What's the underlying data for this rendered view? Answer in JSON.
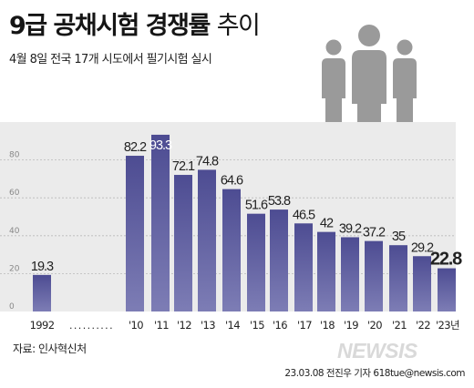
{
  "title_bold": "9급 공채시험 경쟁률",
  "title_light": "추이",
  "subtitle": "4월 8일 전국 17개 시도에서 필기시험 실시",
  "source": "자료: 인사혁신처",
  "watermark": "NEWSIS",
  "credit": "23.03.08 전진우 기자 618tue@newsis.com",
  "icon": "people-group-icon",
  "colors": {
    "bar_top": "#4d4c92",
    "bar_bottom": "#7d7db5",
    "icon": "#9a9a9a",
    "background_panel": "#ebebeb",
    "gridline": "#b9b9b9"
  },
  "chart_data": {
    "type": "bar",
    "title": "9급 공채시험 경쟁률 추이",
    "categories": [
      "1992",
      "'10",
      "'11",
      "'12",
      "'13",
      "'14",
      "'15",
      "'16",
      "'17",
      "'18",
      "'19",
      "'20",
      "'21",
      "'22",
      "'23년"
    ],
    "values": [
      19.3,
      82.2,
      93.3,
      72.1,
      74.8,
      64.6,
      51.6,
      53.8,
      46.5,
      42,
      39.2,
      37.2,
      35,
      29.2,
      22.8
    ],
    "value_labels": [
      "19.3",
      "82.2",
      "93.3",
      "72.1",
      "74.8",
      "64.6",
      "51.6",
      "53.8",
      "46.5",
      "42",
      "39.2",
      "37.2",
      "35",
      "29.2",
      "22.8"
    ],
    "highlight_index": 2,
    "emphasis_index": 14,
    "yticks": [
      0,
      20,
      40,
      60,
      80
    ],
    "ylim": [
      0,
      100
    ],
    "axis_break": "..........",
    "grid": true,
    "xlabel": "",
    "ylabel": ""
  }
}
